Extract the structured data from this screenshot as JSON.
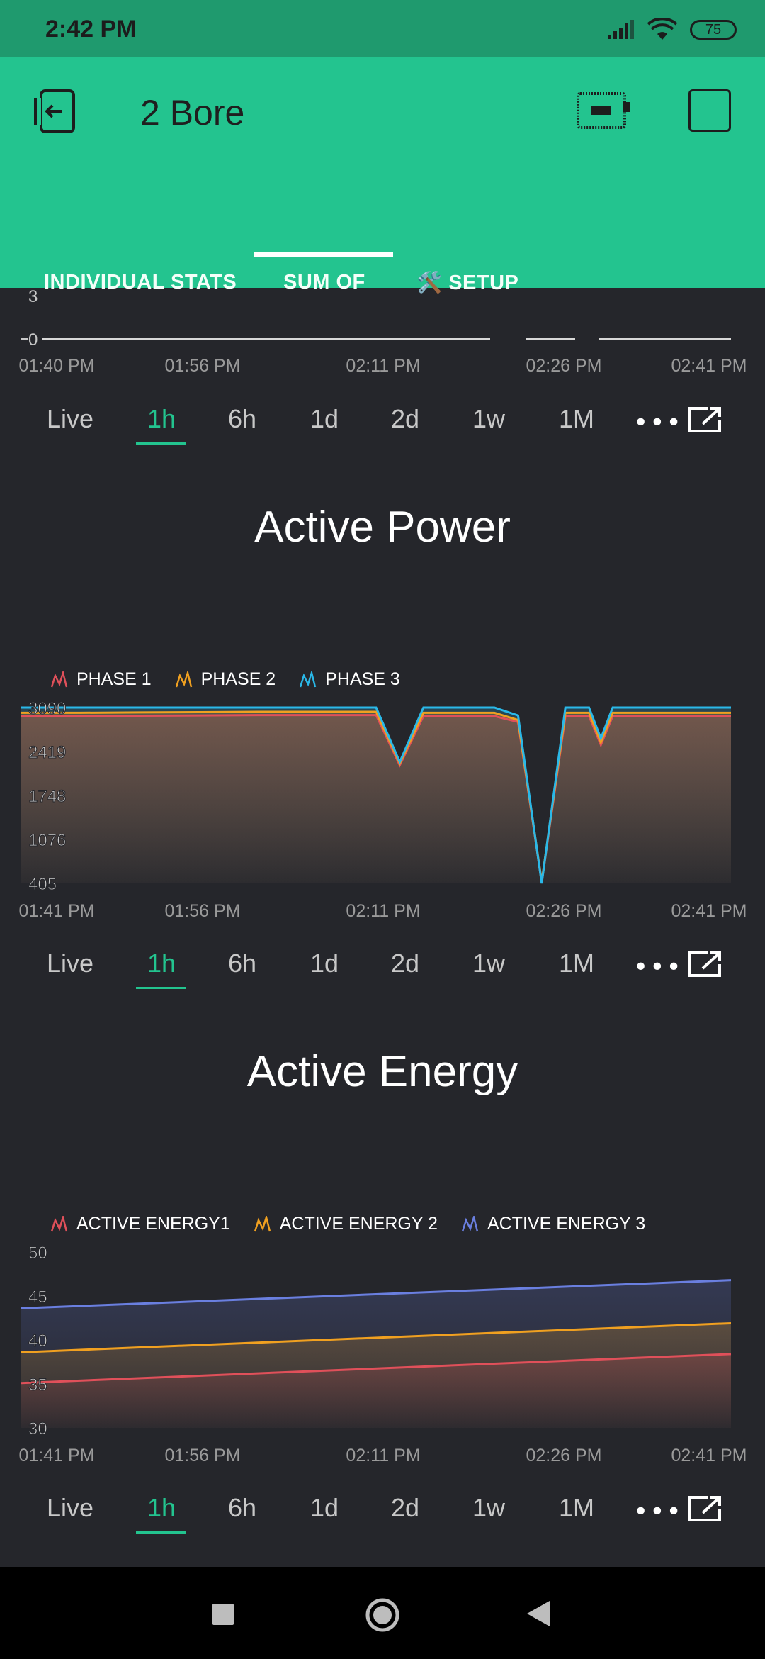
{
  "status": {
    "time": "2:42 PM",
    "battery": "75"
  },
  "app": {
    "title": "2 Bore"
  },
  "tabs": [
    {
      "label": "INDIVIDUAL STATS",
      "active": false
    },
    {
      "label": "SUM OF",
      "active": true
    },
    {
      "label": "🛠️ SETUP",
      "active": false
    }
  ],
  "ranges": [
    "Live",
    "1h",
    "6h",
    "1d",
    "2d",
    "1w",
    "1M"
  ],
  "active_range": "1h",
  "colors": {
    "accent": "#23c48f",
    "phase1": "#e0505a",
    "phase2": "#f0a020",
    "phase3": "#2ab8e8",
    "energy1": "#e0505a",
    "energy2": "#f0a020",
    "energy3": "#6a7fe0"
  },
  "chart_data": [
    {
      "type": "line",
      "title": "",
      "yticks": [
        "3",
        "0"
      ],
      "x_labels": [
        "01:40 PM",
        "01:56 PM",
        "02:11 PM",
        "02:26 PM",
        "02:41 PM"
      ],
      "series": [
        {
          "values": [
            0,
            0,
            0,
            0,
            0,
            0,
            0,
            0,
            0,
            0,
            0,
            0,
            0,
            0,
            0,
            0,
            0,
            0,
            0,
            0,
            0,
            0,
            0,
            0,
            0,
            0,
            0,
            0,
            0,
            0,
            0,
            0,
            0,
            0,
            0,
            0,
            0,
            0,
            0,
            0,
            0,
            0,
            0,
            0,
            0,
            0,
            0,
            0,
            0,
            0,
            0,
            0,
            0,
            0,
            0,
            0,
            0,
            0,
            0,
            0
          ]
        }
      ],
      "ylim": [
        0,
        3
      ]
    },
    {
      "type": "area",
      "title": "Active Power",
      "legend": [
        "PHASE 1",
        "PHASE 2",
        "PHASE 3"
      ],
      "yticks": [
        "3090",
        "2419",
        "1748",
        "1076",
        "405"
      ],
      "ylim": [
        405,
        3090
      ],
      "x_labels": [
        "01:41 PM",
        "01:56 PM",
        "02:11 PM",
        "02:26 PM",
        "02:41 PM"
      ],
      "x": [
        0,
        5,
        10,
        15,
        20,
        25,
        30,
        32,
        34,
        36,
        38,
        40,
        42,
        44,
        46,
        47,
        48,
        49,
        50,
        52,
        54,
        55,
        56,
        58,
        60
      ],
      "series": [
        {
          "name": "PHASE 1",
          "values": [
            2960,
            2960,
            2965,
            2970,
            2975,
            2975,
            2975,
            2210,
            2960,
            2960,
            2960,
            2960,
            2870,
            420,
            2960,
            2960,
            2960,
            2520,
            2960,
            2960,
            2960,
            2960,
            2960,
            2960,
            2960
          ]
        },
        {
          "name": "PHASE 2",
          "values": [
            3010,
            3010,
            3015,
            3020,
            3025,
            3025,
            3025,
            2240,
            3010,
            3010,
            3010,
            3010,
            2900,
            430,
            3010,
            3010,
            3010,
            2560,
            3010,
            3010,
            3010,
            3010,
            3010,
            3010,
            3010
          ]
        },
        {
          "name": "PHASE 3",
          "values": [
            3090,
            3090,
            3090,
            3090,
            3090,
            3090,
            3090,
            2260,
            3090,
            3090,
            3090,
            3090,
            2970,
            405,
            3090,
            3090,
            3090,
            2620,
            3090,
            3090,
            3090,
            3090,
            3090,
            3090,
            3090
          ]
        }
      ]
    },
    {
      "type": "area",
      "title": "Active Energy",
      "legend": [
        "ACTIVE ENERGY1",
        "ACTIVE ENERGY 2",
        "ACTIVE ENERGY 3"
      ],
      "yticks": [
        "50",
        "45",
        "40",
        "35",
        "30"
      ],
      "ylim": [
        30,
        50
      ],
      "x_labels": [
        "01:41 PM",
        "01:56 PM",
        "02:11 PM",
        "02:26 PM",
        "02:41 PM"
      ],
      "x": [
        0,
        60
      ],
      "series": [
        {
          "name": "ACTIVE ENERGY1",
          "values": [
            35.1,
            38.4
          ]
        },
        {
          "name": "ACTIVE ENERGY 2",
          "values": [
            38.6,
            41.9
          ]
        },
        {
          "name": "ACTIVE ENERGY 3",
          "values": [
            43.6,
            46.8
          ]
        }
      ]
    }
  ]
}
